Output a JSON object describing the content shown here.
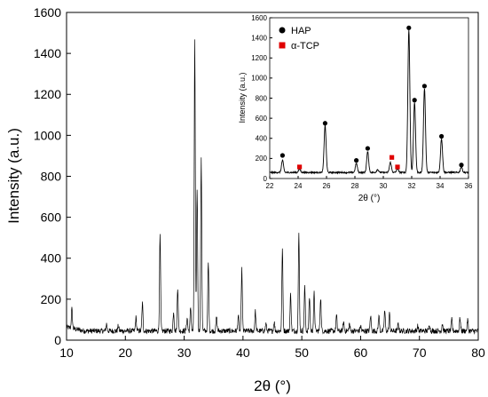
{
  "chart_data": [
    {
      "type": "line",
      "role": "main",
      "xlabel": "2θ (°)",
      "ylabel": "Intensity (a.u.)",
      "xlim": [
        10,
        80
      ],
      "ylim": [
        0,
        1600
      ],
      "xticks": [
        10,
        20,
        30,
        40,
        50,
        60,
        70,
        80
      ],
      "yticks": [
        0,
        200,
        400,
        600,
        800,
        1000,
        1200,
        1400,
        1600
      ],
      "x_tick_labels": [
        "10",
        "20",
        "30",
        "40",
        "50",
        "60",
        "70",
        "80"
      ],
      "y_tick_labels": [
        "0",
        "200",
        "400",
        "600",
        "800",
        "1000",
        "1200",
        "1400",
        "1600"
      ],
      "grid": false,
      "series": [
        {
          "color": "#000000",
          "baseline": 45,
          "peaks": [
            [
              10.9,
              140
            ],
            [
              16.8,
              80
            ],
            [
              18.8,
              70
            ],
            [
              21.8,
              110
            ],
            [
              22.9,
              180
            ],
            [
              25.9,
              510
            ],
            [
              28.2,
              140
            ],
            [
              28.9,
              260
            ],
            [
              30.5,
              110
            ],
            [
              31.1,
              160
            ],
            [
              31.8,
              1460
            ],
            [
              32.2,
              740
            ],
            [
              32.9,
              880
            ],
            [
              34.1,
              380
            ],
            [
              35.5,
              110
            ],
            [
              39.2,
              120
            ],
            [
              39.8,
              345
            ],
            [
              42.1,
              140
            ],
            [
              43.9,
              80
            ],
            [
              45.3,
              90
            ],
            [
              46.7,
              445
            ],
            [
              48.1,
              225
            ],
            [
              49.5,
              515
            ],
            [
              50.5,
              260
            ],
            [
              51.3,
              210
            ],
            [
              52.1,
              230
            ],
            [
              53.2,
              210
            ],
            [
              55.9,
              120
            ],
            [
              57.1,
              90
            ],
            [
              58.1,
              80
            ],
            [
              60.0,
              70
            ],
            [
              61.7,
              120
            ],
            [
              63.1,
              120
            ],
            [
              64.1,
              145
            ],
            [
              64.9,
              130
            ],
            [
              66.4,
              80
            ],
            [
              69.7,
              70
            ],
            [
              71.7,
              80
            ],
            [
              73.9,
              80
            ],
            [
              75.5,
              100
            ],
            [
              76.9,
              110
            ],
            [
              78.2,
              100
            ]
          ]
        }
      ]
    },
    {
      "type": "line",
      "role": "inset",
      "xlabel": "2θ (°)",
      "ylabel": "Intensity (a.u.)",
      "xlim": [
        22,
        36
      ],
      "ylim": [
        0,
        1600
      ],
      "xticks": [
        22,
        24,
        26,
        28,
        30,
        32,
        34,
        36
      ],
      "yticks": [
        0,
        200,
        400,
        600,
        800,
        1000,
        1200,
        1400,
        1600
      ],
      "x_tick_labels": [
        "22",
        "24",
        "26",
        "28",
        "30",
        "32",
        "34",
        "36"
      ],
      "y_tick_labels": [
        "0",
        "200",
        "400",
        "600",
        "800",
        "1000",
        "1200",
        "1400",
        "1600"
      ],
      "legend": [
        {
          "label": "HAP",
          "marker": "circle",
          "color": "#000000"
        },
        {
          "label": "α-TCP",
          "marker": "square",
          "color": "#e00000"
        }
      ],
      "legend_position": "top-left",
      "series": [
        {
          "color": "#000000",
          "baseline": 60,
          "peaks": [
            [
              22.9,
              180
            ],
            [
              24.1,
              95
            ],
            [
              25.9,
              530
            ],
            [
              28.1,
              150
            ],
            [
              28.9,
              265
            ],
            [
              29.6,
              90
            ],
            [
              30.5,
              160
            ],
            [
              31.0,
              95
            ],
            [
              31.8,
              1480
            ],
            [
              32.2,
              760
            ],
            [
              32.9,
              900
            ],
            [
              34.1,
              400
            ],
            [
              35.5,
              115
            ]
          ]
        }
      ],
      "markers": {
        "HAP": [
          [
            22.9,
            230
          ],
          [
            25.9,
            550
          ],
          [
            28.1,
            180
          ],
          [
            28.9,
            300
          ],
          [
            31.8,
            1500
          ],
          [
            32.2,
            780
          ],
          [
            32.9,
            920
          ],
          [
            34.1,
            420
          ],
          [
            35.5,
            135
          ]
        ],
        "α-TCP": [
          [
            24.1,
            115
          ],
          [
            30.6,
            210
          ],
          [
            31.0,
            115
          ]
        ]
      }
    }
  ]
}
